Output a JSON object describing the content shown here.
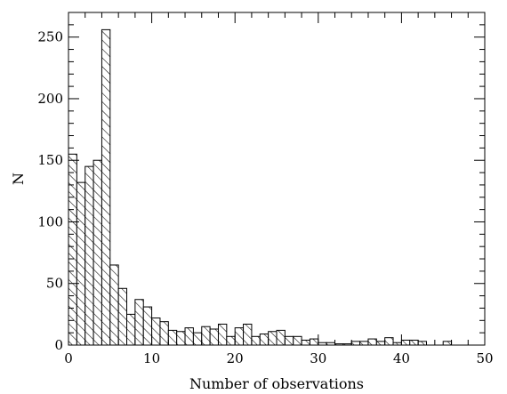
{
  "chart_data": {
    "type": "bar",
    "title": "",
    "xlabel": "Number of observations",
    "ylabel": "N",
    "xlim": [
      0,
      50
    ],
    "ylim": [
      0,
      270
    ],
    "grid": false,
    "fill_pattern": "diagonal-hatch",
    "bar_color": "#000000",
    "bin_width": 1,
    "x_ticks": [
      0,
      10,
      20,
      30,
      40,
      50
    ],
    "y_ticks": [
      0,
      50,
      100,
      150,
      200,
      250
    ],
    "bins_start": [
      0,
      1,
      2,
      3,
      4,
      5,
      6,
      7,
      8,
      9,
      10,
      11,
      12,
      13,
      14,
      15,
      16,
      17,
      18,
      19,
      20,
      21,
      22,
      23,
      24,
      25,
      26,
      27,
      28,
      29,
      30,
      31,
      32,
      33,
      34,
      35,
      36,
      37,
      38,
      39,
      40,
      41,
      42,
      43,
      44,
      45,
      46,
      47,
      48,
      49
    ],
    "values": [
      155,
      132,
      145,
      150,
      256,
      65,
      46,
      25,
      37,
      31,
      22,
      19,
      12,
      11,
      14,
      10,
      15,
      13,
      17,
      7,
      14,
      17,
      7,
      9,
      11,
      12,
      7,
      7,
      4,
      5,
      2,
      2,
      1,
      1,
      3,
      3,
      5,
      3,
      6,
      2,
      4,
      4,
      3,
      0,
      0,
      3,
      0,
      0,
      0,
      0
    ]
  }
}
